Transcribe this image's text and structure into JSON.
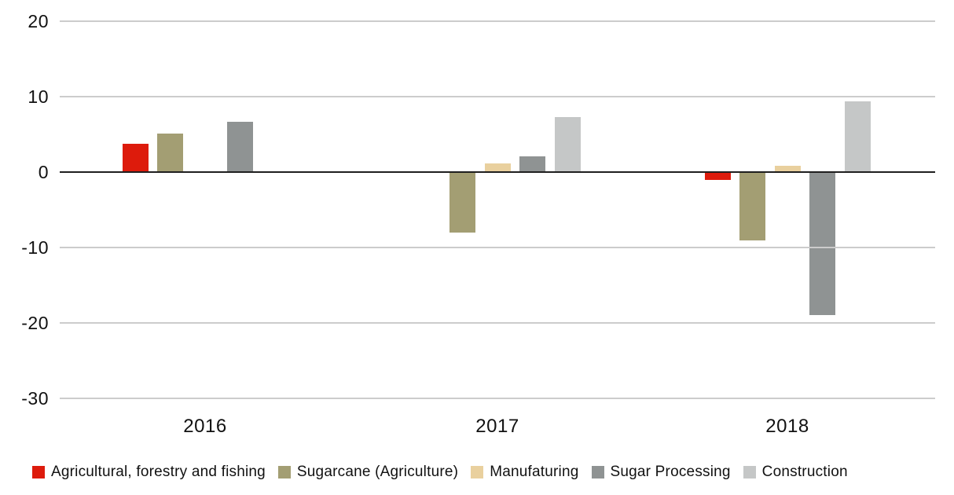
{
  "chart_data": {
    "type": "bar",
    "title": "",
    "xlabel": "",
    "ylabel": "",
    "categories": [
      "2016",
      "2017",
      "2018"
    ],
    "series": [
      {
        "name": "Agricultural, forestry and fishing",
        "color": "#dd1b0c",
        "values": [
          3.8,
          null,
          -1.0
        ]
      },
      {
        "name": "Sugarcane (Agriculture)",
        "color": "#a39e73",
        "values": [
          5.1,
          -8.0,
          -9.1
        ]
      },
      {
        "name": "Manufaturing",
        "color": "#e9d09e",
        "values": [
          null,
          1.1,
          0.8
        ]
      },
      {
        "name": "Sugar Processing",
        "color": "#8f9393",
        "values": [
          6.7,
          2.1,
          -19.0
        ]
      },
      {
        "name": "Construction",
        "color": "#c5c7c7",
        "values": [
          null,
          7.3,
          9.4
        ]
      }
    ],
    "ylim": [
      -30,
      20
    ],
    "yticks": [
      20,
      10,
      0,
      -10,
      -20,
      -30
    ],
    "grid": "horizontal",
    "gridlines_over_bars": true,
    "legend_position": "bottom"
  },
  "colors": {
    "background": "#ffffff",
    "gridline": "#cccccc",
    "zero_line": "#1f1f1f",
    "text": "#111111"
  }
}
